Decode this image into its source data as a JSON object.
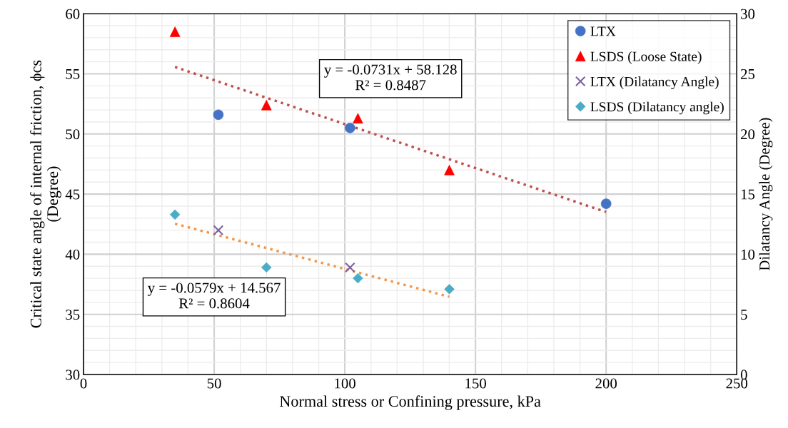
{
  "chart_data": {
    "type": "scatter",
    "xlabel": "Normal stress or Confining pressure, kPa",
    "ylabel": "Critical state angle of internal friction, ϕcs\n(Degree)",
    "y2label": "Dilatancy Angle (Degree)",
    "xlim": [
      0,
      250
    ],
    "xticks": [
      0,
      50,
      100,
      150,
      200,
      250
    ],
    "ylim": [
      30,
      60
    ],
    "yticks": [
      30,
      35,
      40,
      45,
      50,
      55,
      60
    ],
    "y2lim": [
      0,
      30
    ],
    "y2ticks": [
      0,
      5,
      10,
      15,
      20,
      25,
      30
    ],
    "grid": true,
    "legend": "top right",
    "series": [
      {
        "name": "LTX",
        "color": "#4472c4",
        "marker": "circle",
        "x": [
          51.6,
          102,
          200
        ],
        "values": [
          51.6,
          50.5,
          44.2
        ]
      },
      {
        "name": "LSDS (Loose State)",
        "color": "#ff0000",
        "marker": "triangle",
        "x": [
          35,
          70,
          105,
          140
        ],
        "values": [
          58.5,
          52.4,
          51.3,
          47.0
        ]
      },
      {
        "name": "LTX (Dilatancy Angle)",
        "color": "#7f60a0",
        "marker": "cross",
        "axis": "y2",
        "x": [
          51.6,
          102
        ],
        "values": [
          12.0,
          8.9
        ]
      },
      {
        "name": "LSDS (Dilatancy angle)",
        "color": "#4bacc6",
        "marker": "diamond",
        "axis": "y2",
        "x": [
          35,
          70,
          105,
          140
        ],
        "values": [
          13.3,
          8.9,
          8.0,
          7.1
        ]
      },
      {
        "type": "line",
        "color": "#c0504d",
        "line_style": "dotted",
        "x": [
          35,
          200
        ],
        "values": [
          55.57,
          43.51
        ]
      },
      {
        "type": "line",
        "color": "#f79646",
        "line_style": "dotted",
        "axis": "y2",
        "x": [
          35,
          140
        ],
        "values": [
          12.54,
          6.46
        ]
      }
    ],
    "annotations": [
      "y = -0.0731x + 58.128\nR² = 0.8487",
      "y = -0.0579x + 14.567\nR² = 0.8604"
    ]
  }
}
